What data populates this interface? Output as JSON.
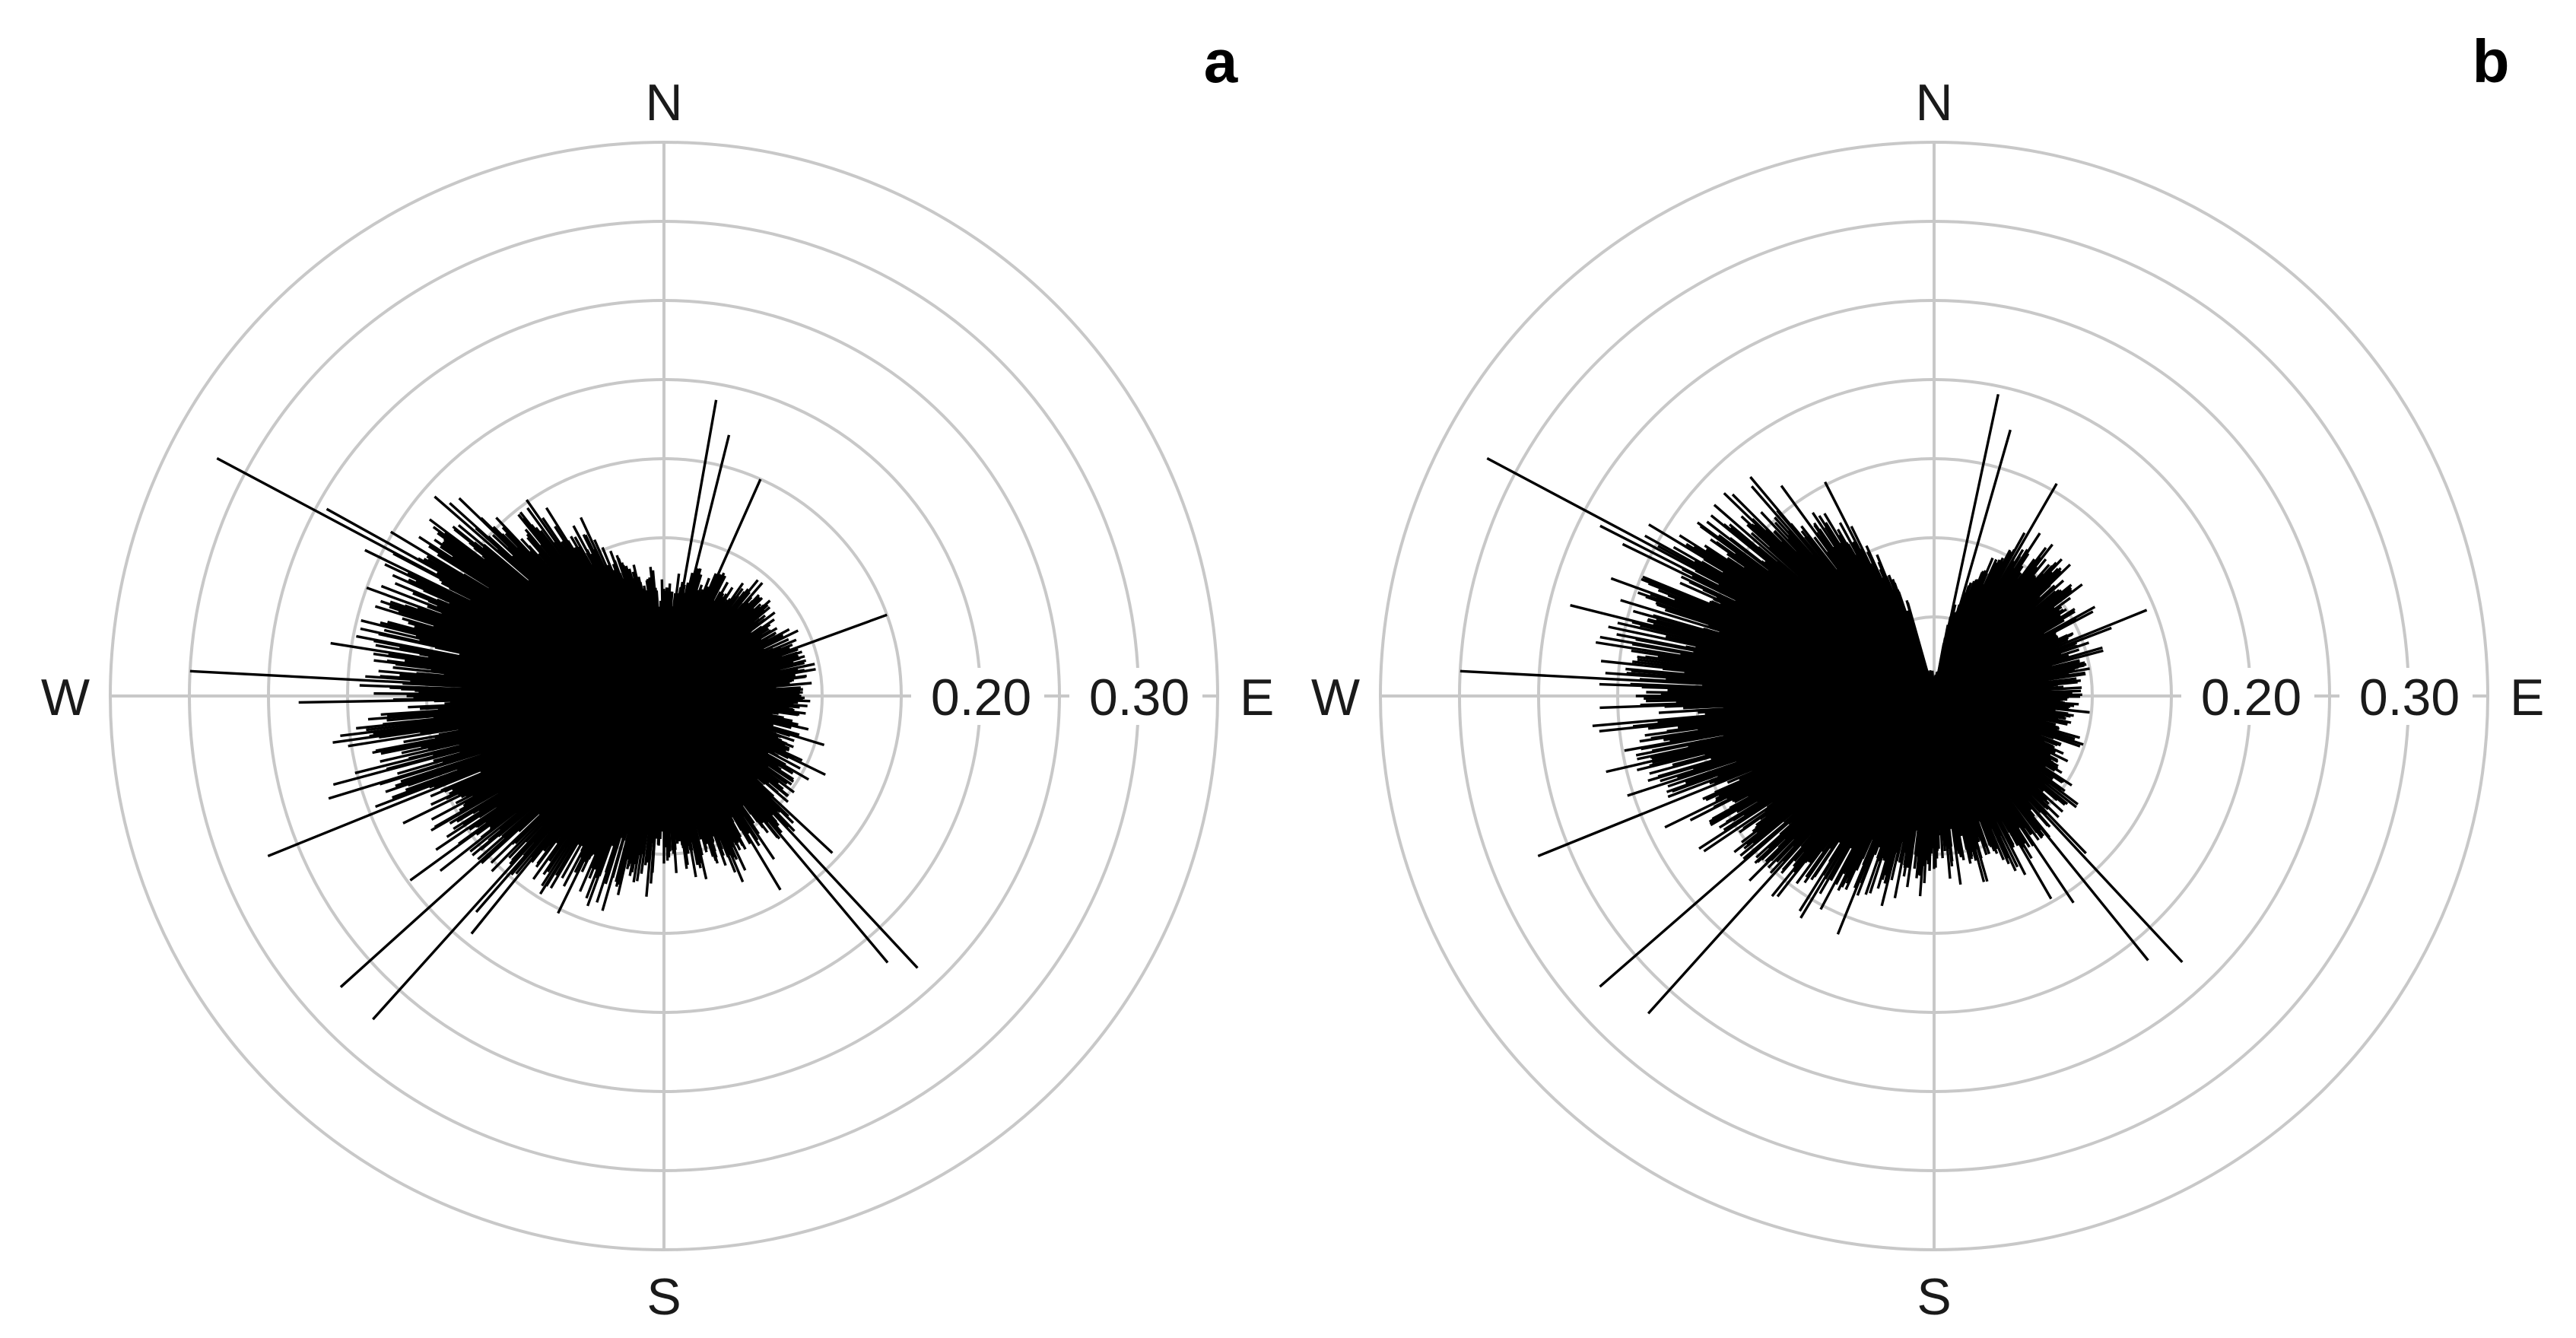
{
  "figure": {
    "background": "#ffffff",
    "grid_color": "#c8c8c8",
    "bar_color": "#000000"
  },
  "chart_data": [
    {
      "type": "polar-bar",
      "panel_label": "a",
      "directions": {
        "north": "N",
        "east": "E",
        "south": "S",
        "west": "W"
      },
      "radial_ticks": [
        {
          "value": 0.2,
          "label": "0.20"
        },
        {
          "value": 0.3,
          "label": "0.30"
        }
      ],
      "radial_rings": [
        0.05,
        0.1,
        0.15,
        0.2,
        0.25,
        0.3
      ],
      "rlim": [
        0,
        0.35
      ],
      "angle_step_deg": 1,
      "base_profile": [
        [
          0,
          0.065
        ],
        [
          20,
          0.075
        ],
        [
          45,
          0.085
        ],
        [
          60,
          0.08
        ],
        [
          75,
          0.09
        ],
        [
          90,
          0.085
        ],
        [
          105,
          0.08
        ],
        [
          120,
          0.09
        ],
        [
          135,
          0.11
        ],
        [
          150,
          0.11
        ],
        [
          165,
          0.105
        ],
        [
          180,
          0.105
        ],
        [
          195,
          0.12
        ],
        [
          210,
          0.135
        ],
        [
          225,
          0.15
        ],
        [
          240,
          0.16
        ],
        [
          255,
          0.185
        ],
        [
          270,
          0.18
        ],
        [
          285,
          0.19
        ],
        [
          300,
          0.19
        ],
        [
          315,
          0.155
        ],
        [
          330,
          0.12
        ],
        [
          345,
          0.08
        ],
        [
          360,
          0.065
        ]
      ],
      "peaks": [
        {
          "angle_deg": 10,
          "value": 0.19
        },
        {
          "angle_deg": 14,
          "value": 0.17
        },
        {
          "angle_deg": 24,
          "value": 0.15
        },
        {
          "angle_deg": 70,
          "value": 0.15
        },
        {
          "angle_deg": 137,
          "value": 0.235
        },
        {
          "angle_deg": 140,
          "value": 0.22
        },
        {
          "angle_deg": 222,
          "value": 0.275
        },
        {
          "angle_deg": 228,
          "value": 0.275
        },
        {
          "angle_deg": 248,
          "value": 0.27
        },
        {
          "angle_deg": 273,
          "value": 0.3
        },
        {
          "angle_deg": 298,
          "value": 0.32
        }
      ],
      "noise_seed": 7,
      "notch": null
    },
    {
      "type": "polar-bar",
      "panel_label": "b",
      "directions": {
        "north": "N",
        "east": "E",
        "south": "S",
        "west": "W"
      },
      "radial_ticks": [
        {
          "value": 0.2,
          "label": "0.20"
        },
        {
          "value": 0.3,
          "label": "0.30"
        }
      ],
      "radial_rings": [
        0.05,
        0.1,
        0.15,
        0.2,
        0.25,
        0.3
      ],
      "rlim": [
        0,
        0.35
      ],
      "angle_step_deg": 1,
      "base_profile": [
        [
          0,
          0.012
        ],
        [
          15,
          0.06
        ],
        [
          25,
          0.105
        ],
        [
          45,
          0.11
        ],
        [
          60,
          0.1
        ],
        [
          75,
          0.095
        ],
        [
          90,
          0.09
        ],
        [
          105,
          0.085
        ],
        [
          120,
          0.09
        ],
        [
          135,
          0.11
        ],
        [
          150,
          0.11
        ],
        [
          165,
          0.105
        ],
        [
          180,
          0.105
        ],
        [
          195,
          0.12
        ],
        [
          210,
          0.135
        ],
        [
          225,
          0.15
        ],
        [
          240,
          0.16
        ],
        [
          255,
          0.185
        ],
        [
          270,
          0.185
        ],
        [
          285,
          0.19
        ],
        [
          300,
          0.19
        ],
        [
          315,
          0.16
        ],
        [
          330,
          0.13
        ],
        [
          340,
          0.08
        ],
        [
          350,
          0.03
        ],
        [
          360,
          0.012
        ]
      ],
      "peaks": [
        {
          "angle_deg": 12,
          "value": 0.195
        },
        {
          "angle_deg": 16,
          "value": 0.175
        },
        {
          "angle_deg": 30,
          "value": 0.155
        },
        {
          "angle_deg": 68,
          "value": 0.145
        },
        {
          "angle_deg": 137,
          "value": 0.23
        },
        {
          "angle_deg": 141,
          "value": 0.215
        },
        {
          "angle_deg": 222,
          "value": 0.27
        },
        {
          "angle_deg": 229,
          "value": 0.28
        },
        {
          "angle_deg": 248,
          "value": 0.27
        },
        {
          "angle_deg": 273,
          "value": 0.3
        },
        {
          "angle_deg": 298,
          "value": 0.32
        }
      ],
      "noise_seed": 19,
      "notch": {
        "from_deg": 345,
        "to_deg": 10,
        "value": 0.012
      }
    }
  ]
}
